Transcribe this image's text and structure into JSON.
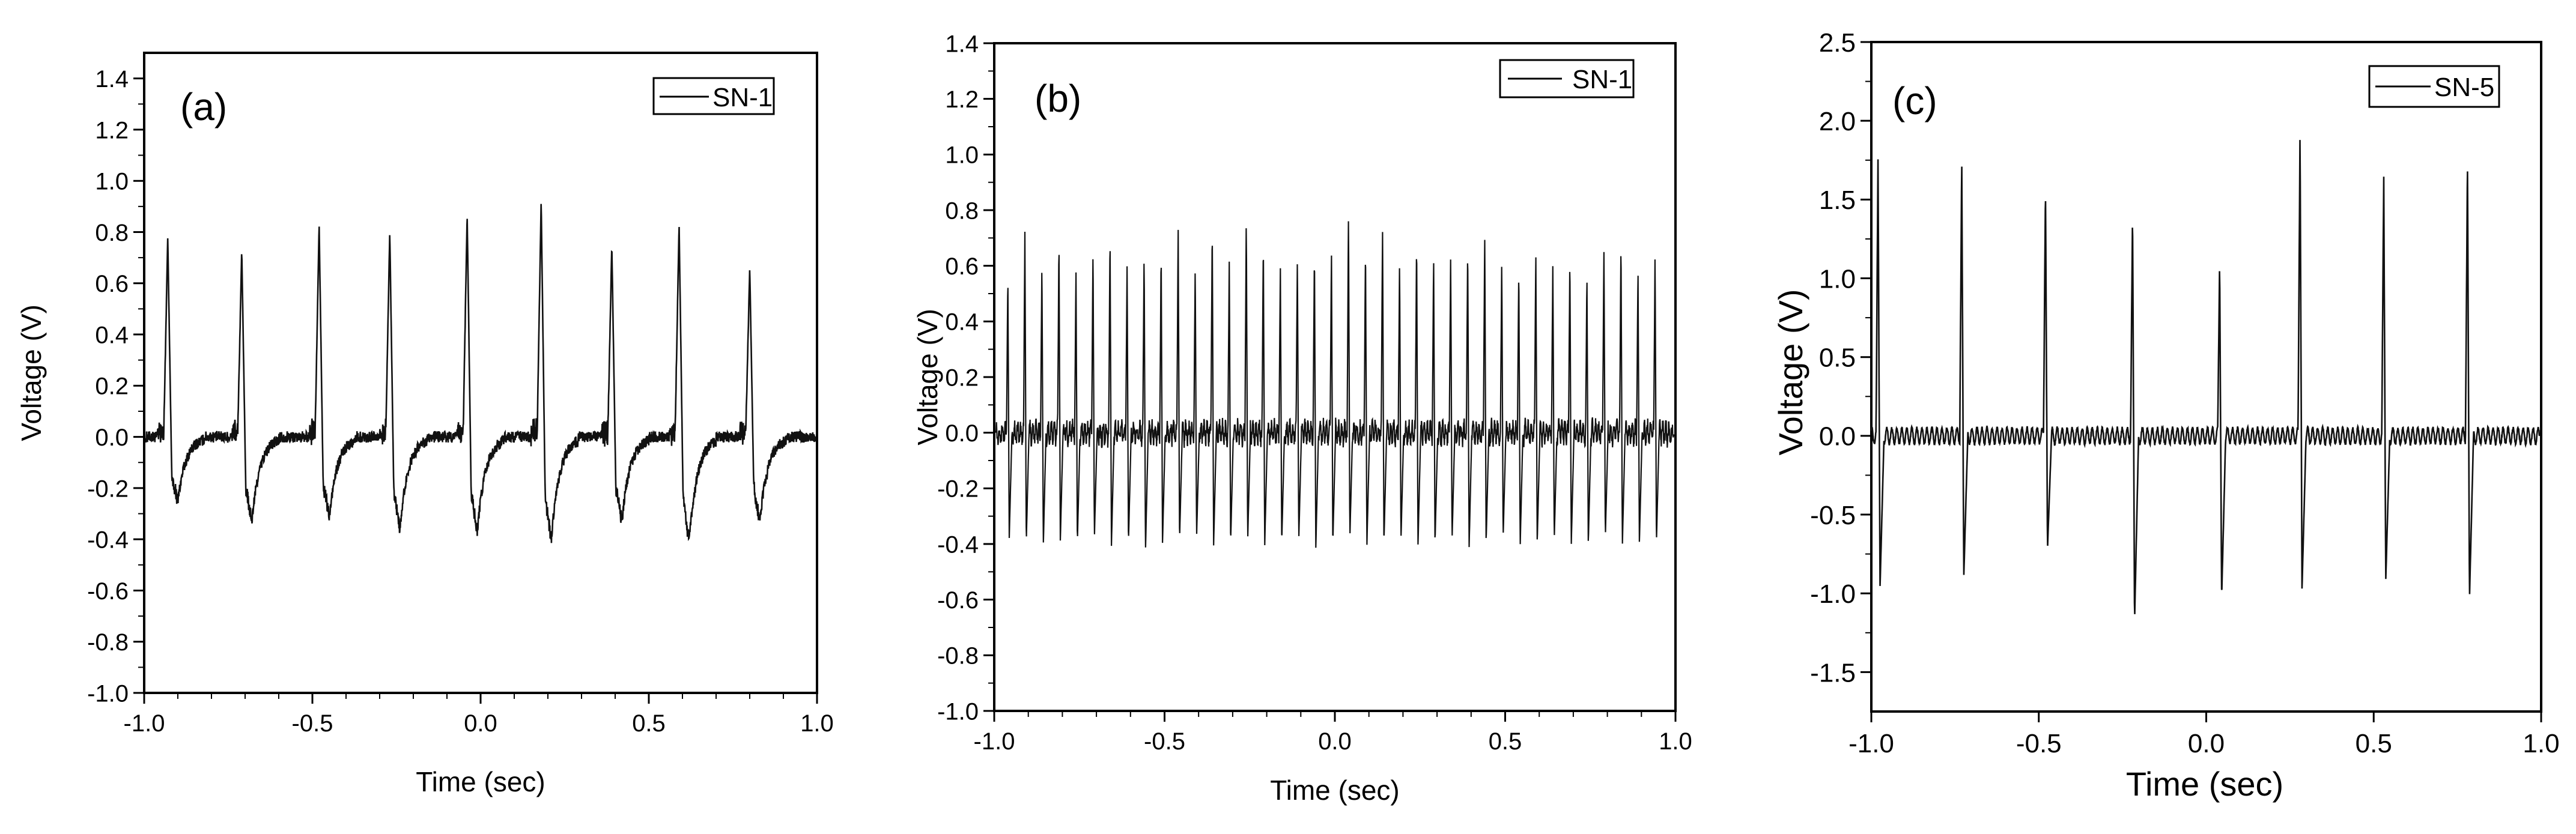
{
  "figure": {
    "panels": [
      "(a)",
      "(b)",
      "(c)"
    ]
  },
  "chart_data": [
    {
      "type": "line",
      "panel_label": "(a)",
      "xlabel": "Time (sec)",
      "ylabel": "Voltage (V)",
      "xlim": [
        -1.0,
        1.0
      ],
      "ylim": [
        -1.0,
        1.5
      ],
      "x_ticks": [
        -1.0,
        -0.5,
        0.0,
        0.5,
        1.0
      ],
      "x_tick_labels": [
        "-1.0",
        "-0.5",
        "0.0",
        "0.5",
        "1.0"
      ],
      "y_ticks": [
        -1.0,
        -0.8,
        -0.6,
        -0.4,
        -0.2,
        0.0,
        0.2,
        0.4,
        0.6,
        0.8,
        1.0,
        1.2,
        1.4
      ],
      "y_tick_labels": [
        "-1.0",
        "-0.8",
        "-0.6",
        "-0.4",
        "-0.2",
        "0.0",
        "0.2",
        "0.4",
        "0.6",
        "0.8",
        "1.0",
        "1.2",
        "1.4"
      ],
      "legend": "top-right",
      "grid": false,
      "series": [
        {
          "name": "SN-1",
          "pulse_times": [
            -0.93,
            -0.71,
            -0.48,
            -0.27,
            -0.04,
            0.18,
            0.39,
            0.59,
            0.8
          ],
          "pulse_peaks": [
            0.78,
            0.73,
            0.83,
            0.8,
            0.87,
            0.92,
            0.75,
            0.83,
            0.66
          ],
          "pulse_troughs": [
            -0.25,
            -0.33,
            -0.31,
            -0.36,
            -0.37,
            -0.4,
            -0.33,
            -0.41,
            -0.33
          ],
          "baseline": 0.0
        }
      ]
    },
    {
      "type": "line",
      "panel_label": "(b)",
      "xlabel": "Time (sec)",
      "ylabel": "Voltage (V)",
      "xlim": [
        -1.0,
        1.0
      ],
      "ylim": [
        -1.0,
        1.4
      ],
      "x_ticks": [
        -1.0,
        -0.5,
        0.0,
        0.5,
        1.0
      ],
      "x_tick_labels": [
        "-1.0",
        "-0.5",
        "0.0",
        "0.5",
        "1.0"
      ],
      "y_ticks": [
        -1.0,
        -0.8,
        -0.6,
        -0.4,
        -0.2,
        0.0,
        0.2,
        0.4,
        0.6,
        0.8,
        1.0,
        1.2,
        1.4
      ],
      "y_tick_labels": [
        "-1.0",
        "-0.8",
        "-0.6",
        "-0.4",
        "-0.2",
        "0.0",
        "0.2",
        "0.4",
        "0.6",
        "0.8",
        "1.0",
        "1.2",
        "1.4"
      ],
      "legend": "top-right",
      "grid": false,
      "series": [
        {
          "name": "SN-1",
          "pulse_times": [
            -0.96,
            -0.91,
            -0.86,
            -0.81,
            -0.76,
            -0.71,
            -0.66,
            -0.61,
            -0.56,
            -0.51,
            -0.46,
            -0.41,
            -0.36,
            -0.31,
            -0.26,
            -0.21,
            -0.16,
            -0.11,
            -0.06,
            -0.01,
            0.04,
            0.09,
            0.14,
            0.19,
            0.24,
            0.29,
            0.34,
            0.39,
            0.44,
            0.49,
            0.54,
            0.59,
            0.64,
            0.69,
            0.74,
            0.79,
            0.84,
            0.89,
            0.94
          ],
          "pulse_peaks": [
            0.57,
            0.73,
            0.62,
            0.7,
            0.58,
            0.67,
            0.72,
            0.6,
            0.65,
            0.66,
            0.73,
            0.61,
            0.75,
            0.62,
            0.78,
            0.7,
            0.6,
            0.64,
            0.66,
            0.65,
            0.8,
            0.68,
            0.74,
            0.62,
            0.7,
            0.63,
            0.65,
            0.68,
            0.72,
            0.62,
            0.6,
            0.66,
            0.62,
            0.64,
            0.57,
            0.67,
            0.7,
            0.6,
            0.64
          ],
          "pulse_troughs": [
            -0.38,
            -0.4,
            -0.41,
            -0.39,
            -0.4,
            -0.38,
            -0.41,
            -0.4,
            -0.43,
            -0.4,
            -0.39,
            -0.38,
            -0.41,
            -0.4,
            -0.39,
            -0.41,
            -0.4,
            -0.39,
            -0.42,
            -0.4,
            -0.38,
            -0.41,
            -0.4,
            -0.39,
            -0.41,
            -0.4,
            -0.39,
            -0.42,
            -0.4,
            -0.38,
            -0.41,
            -0.4,
            -0.39,
            -0.41,
            -0.4,
            -0.38,
            -0.41,
            -0.4,
            -0.4
          ],
          "baseline": 0.0
        }
      ]
    },
    {
      "type": "line",
      "panel_label": "(c)",
      "xlabel": "Time (sec)",
      "ylabel": "Voltage (V)",
      "xlim": [
        -1.0,
        1.0
      ],
      "ylim": [
        -1.75,
        2.5
      ],
      "x_ticks": [
        -1.0,
        -0.5,
        0.0,
        0.5,
        1.0
      ],
      "x_tick_labels": [
        "-1.0",
        "-0.5",
        "0.0",
        "0.5",
        "1.0"
      ],
      "y_ticks": [
        -1.5,
        -1.0,
        -0.5,
        0.0,
        0.5,
        1.0,
        1.5,
        2.0,
        2.5
      ],
      "y_tick_labels": [
        "-1.5",
        "-1.0",
        "-0.5",
        "0.0",
        "0.5",
        "1.0",
        "1.5",
        "2.0",
        "2.5"
      ],
      "legend": "top-right",
      "grid": false,
      "series": [
        {
          "name": "SN-5",
          "pulse_times": [
            -0.98,
            -0.73,
            -0.48,
            -0.22,
            0.04,
            0.28,
            0.53,
            0.78
          ],
          "pulse_peaks": [
            1.77,
            1.75,
            1.58,
            1.42,
            1.1,
            1.92,
            1.65,
            1.75
          ],
          "pulse_troughs": [
            -0.96,
            -0.9,
            -0.72,
            -1.18,
            -1.03,
            -0.97,
            -0.92,
            -1.03
          ],
          "baseline": 0.0
        }
      ]
    }
  ]
}
